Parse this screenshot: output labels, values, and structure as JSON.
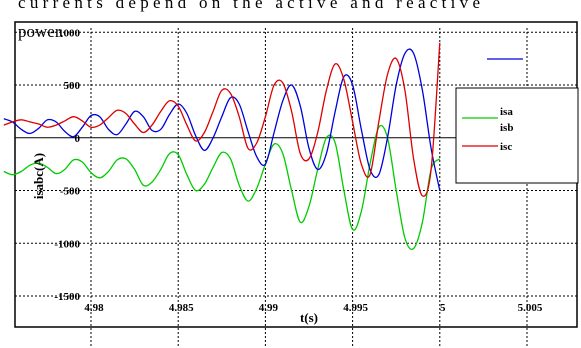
{
  "caption": {
    "line1": "currents depend on the active and reactive",
    "line2": "power."
  },
  "chart_data": {
    "type": "line",
    "title": "",
    "xlabel": "t(s)",
    "ylabel": "isabc(A)",
    "xlim": [
      4.975,
      5.0075
    ],
    "ylim": [
      -1800,
      1050
    ],
    "grid": true,
    "legend_placement": "right",
    "xticks": [
      4.98,
      4.985,
      4.99,
      4.995,
      5,
      5.005
    ],
    "xtick_labels": [
      "4.98",
      "4.985",
      "4.99",
      "4.995",
      "5",
      "5.005"
    ],
    "yticks": [
      1000,
      500,
      0,
      -500,
      -1000,
      -1500
    ],
    "ytick_labels": [
      "1000",
      "500",
      "0",
      "-500",
      "-1000",
      "-1500"
    ],
    "series": [
      {
        "name": "isa",
        "color": "#00cc00",
        "x": [
          4.975,
          4.9755,
          4.976,
          4.9765,
          4.977,
          4.9775,
          4.978,
          4.9785,
          4.979,
          4.9795,
          4.98,
          4.9805,
          4.981,
          4.9815,
          4.982,
          4.9825,
          4.983,
          4.9835,
          4.984,
          4.9845,
          4.985,
          4.9855,
          4.986,
          4.9865,
          4.987,
          4.9875,
          4.988,
          4.9885,
          4.989,
          4.9895,
          4.99,
          4.9905,
          4.991,
          4.9915,
          4.992,
          4.9925,
          4.993,
          4.9935,
          4.994,
          4.9945,
          4.995,
          4.9955,
          4.996,
          4.9965,
          4.997,
          4.9975,
          4.998,
          4.9985,
          4.999,
          4.9995,
          5.0
        ],
        "y": [
          -320,
          -350,
          -320,
          -260,
          -240,
          -280,
          -340,
          -300,
          -210,
          -230,
          -330,
          -380,
          -320,
          -210,
          -200,
          -300,
          -450,
          -420,
          -300,
          -150,
          -160,
          -350,
          -500,
          -440,
          -280,
          -140,
          -200,
          -450,
          -600,
          -480,
          -250,
          -60,
          -150,
          -500,
          -800,
          -650,
          -300,
          0,
          -50,
          -500,
          -870,
          -700,
          -250,
          100,
          0,
          -500,
          -950,
          -1050,
          -800,
          -300,
          -200
        ]
      },
      {
        "name": "isb",
        "color": "#0000dd",
        "x": [
          4.975,
          4.9755,
          4.976,
          4.9765,
          4.977,
          4.9775,
          4.978,
          4.9785,
          4.979,
          4.9795,
          4.98,
          4.9805,
          4.981,
          4.9815,
          4.982,
          4.9825,
          4.983,
          4.9835,
          4.984,
          4.9845,
          4.985,
          4.9855,
          4.986,
          4.9865,
          4.987,
          4.9875,
          4.988,
          4.9885,
          4.989,
          4.9895,
          4.99,
          4.9905,
          4.991,
          4.9915,
          4.992,
          4.9925,
          4.993,
          4.9935,
          4.994,
          4.9945,
          4.995,
          4.9955,
          4.996,
          4.9965,
          4.997,
          4.9975,
          4.998,
          4.9985,
          4.999,
          4.9995,
          5.0
        ],
        "y": [
          180,
          150,
          80,
          40,
          90,
          170,
          150,
          60,
          10,
          100,
          210,
          200,
          80,
          30,
          130,
          250,
          200,
          70,
          80,
          220,
          320,
          230,
          20,
          -120,
          0,
          200,
          380,
          320,
          60,
          -180,
          -250,
          50,
          350,
          500,
          300,
          -100,
          -300,
          -150,
          250,
          580,
          500,
          80,
          -300,
          -350,
          0,
          500,
          800,
          800,
          450,
          -100,
          -500
        ]
      },
      {
        "name": "isc",
        "color": "#dd0000",
        "x": [
          4.975,
          4.9755,
          4.976,
          4.9765,
          4.977,
          4.9775,
          4.978,
          4.9785,
          4.979,
          4.9795,
          4.98,
          4.9805,
          4.981,
          4.9815,
          4.982,
          4.9825,
          4.983,
          4.9835,
          4.984,
          4.9845,
          4.985,
          4.9855,
          4.986,
          4.9865,
          4.987,
          4.9875,
          4.988,
          4.9885,
          4.989,
          4.9895,
          4.99,
          4.9905,
          4.991,
          4.9915,
          4.992,
          4.9925,
          4.993,
          4.9935,
          4.994,
          4.9945,
          4.995,
          4.9955,
          4.996,
          4.9965,
          4.997,
          4.9975,
          4.998,
          4.9985,
          4.999,
          4.9995,
          5.0
        ],
        "y": [
          120,
          150,
          170,
          150,
          130,
          100,
          120,
          160,
          200,
          160,
          100,
          120,
          190,
          260,
          230,
          130,
          50,
          120,
          250,
          350,
          300,
          120,
          -30,
          50,
          250,
          450,
          420,
          200,
          -100,
          -50,
          200,
          500,
          520,
          250,
          -150,
          -200,
          50,
          450,
          700,
          550,
          150,
          -250,
          -350,
          150,
          600,
          750,
          450,
          -200,
          -550,
          -300,
          900
        ]
      }
    ]
  }
}
